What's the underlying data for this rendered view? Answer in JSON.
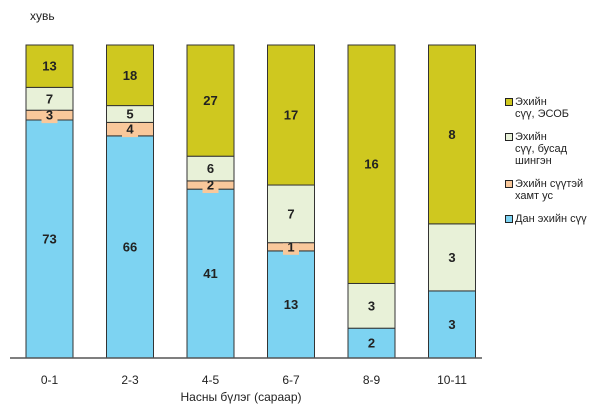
{
  "chart_data": {
    "type": "bar",
    "stacked": true,
    "percent_stacked": true,
    "categories": [
      "0-1",
      "2-3",
      "4-5",
      "6-7",
      "8-9",
      "10-11"
    ],
    "series": [
      {
        "name": "Дан эхийн сүү",
        "color": "#7dd3f2",
        "values": [
          73,
          66,
          41,
          13,
          2,
          3
        ]
      },
      {
        "name": "Эхийн сүүтэй\nхамт ус",
        "color": "#f9c89b",
        "values": [
          3,
          4,
          2,
          1,
          0,
          0
        ]
      },
      {
        "name": "Эхийн\nсүү, бусад\nшингэн",
        "color": "#e8f1d8",
        "values": [
          7,
          5,
          6,
          7,
          3,
          3
        ]
      },
      {
        "name": "Эхийн\nсүү, ЭСОБ",
        "color": "#cfc81f",
        "values": [
          13,
          18,
          27,
          17,
          16,
          8
        ]
      }
    ],
    "title": "",
    "xlabel": "Насны бүлэг (сараар)",
    "ylabel": "хувь",
    "ylim": [
      0,
      100
    ],
    "grid": false,
    "legend_position": "right"
  }
}
